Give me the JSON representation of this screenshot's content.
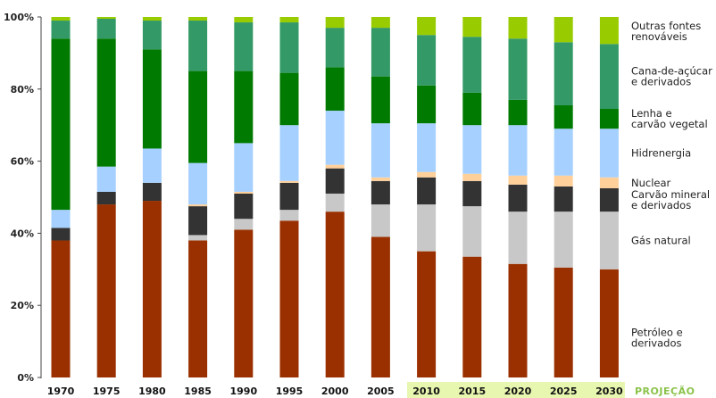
{
  "chart_data": {
    "type": "bar",
    "stacked": true,
    "categories": [
      "1970",
      "1975",
      "1980",
      "1985",
      "1990",
      "1995",
      "2000",
      "2005",
      "2010",
      "2015",
      "2020",
      "2025",
      "2030"
    ],
    "projection_label": "PROJEÇÃO",
    "projection_categories": [
      "2010",
      "2015",
      "2020",
      "2025",
      "2030"
    ],
    "ylim": [
      0,
      100
    ],
    "yticks": [
      "0%",
      "20%",
      "40%",
      "60%",
      "80%",
      "100%"
    ],
    "ytick_values": [
      0,
      20,
      40,
      60,
      80,
      100
    ],
    "series": [
      {
        "name": "Petróleo e derivados",
        "legend": [
          "Petróleo e",
          "derivados"
        ],
        "color": "#9a3000",
        "values": [
          38,
          48,
          49,
          38,
          41,
          43.5,
          46,
          39,
          35,
          33.5,
          31.5,
          30.5,
          30
        ]
      },
      {
        "name": "Gás natural",
        "legend": [
          "Gás natural"
        ],
        "color": "#c8c8c8",
        "values": [
          0,
          0,
          0,
          1.5,
          3,
          3,
          5,
          9,
          13,
          14,
          14.5,
          15.5,
          16
        ]
      },
      {
        "name": "Carvão mineral e derivados",
        "legend": [
          "Carvão mineral",
          "e derivados"
        ],
        "color": "#333333",
        "values": [
          3.5,
          3.5,
          5,
          8,
          7,
          7.5,
          7,
          6.5,
          7.5,
          7,
          7.5,
          7,
          6.5
        ]
      },
      {
        "name": "Nuclear",
        "legend": [
          "Nuclear"
        ],
        "color": "#ffd09a",
        "values": [
          0,
          0,
          0,
          0.5,
          0.5,
          0.5,
          1,
          1,
          1.5,
          2,
          2.5,
          3,
          3
        ]
      },
      {
        "name": "Hidrenergia",
        "legend": [
          "Hidrenergia"
        ],
        "color": "#a6d0ff",
        "values": [
          5,
          7,
          9.5,
          11.5,
          13.5,
          15.5,
          15,
          15,
          13.5,
          13.5,
          14,
          13,
          13.5
        ]
      },
      {
        "name": "Lenha e carvão vegetal",
        "legend": [
          "Lenha e",
          "carvão vegetal"
        ],
        "color": "#007a00",
        "values": [
          47.5,
          35.5,
          27.5,
          25.5,
          20,
          14.5,
          12,
          13,
          10.5,
          9,
          7,
          6.5,
          5.5
        ]
      },
      {
        "name": "Cana-de-açúcar e derivados",
        "legend": [
          "Cana-de-açúcar",
          "e derivados"
        ],
        "color": "#339966",
        "values": [
          5,
          5.5,
          8,
          14,
          13.5,
          14,
          11,
          13.5,
          14,
          15.5,
          17,
          17.5,
          18
        ]
      },
      {
        "name": "Outras fontes renováveis",
        "legend": [
          "Outras fontes",
          "renováveis"
        ],
        "color": "#99cc00",
        "values": [
          1,
          0.5,
          1,
          1,
          2.5,
          2,
          3,
          3,
          5,
          5.5,
          6,
          7,
          7.5
        ]
      }
    ]
  }
}
